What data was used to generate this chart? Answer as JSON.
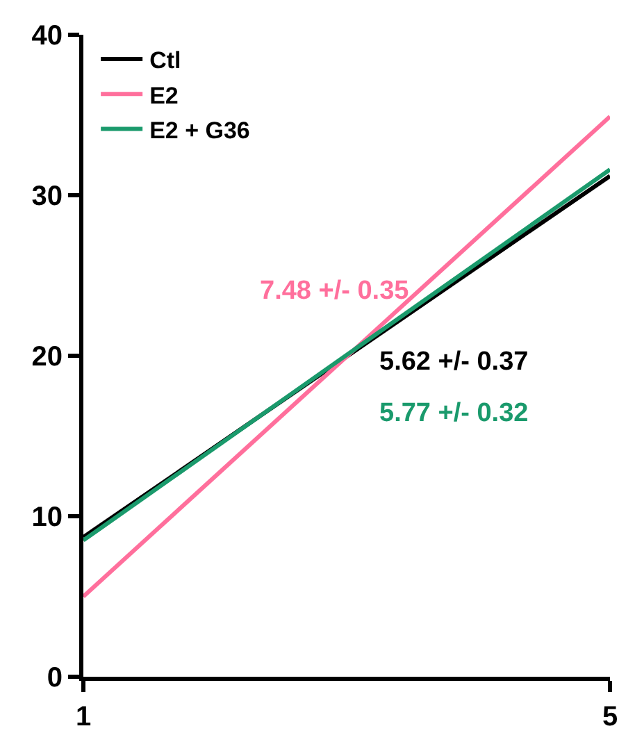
{
  "chart_data": {
    "type": "line",
    "x": [
      1,
      5
    ],
    "series": [
      {
        "name": "Ctl",
        "color": "#000000",
        "values": [
          8.7,
          31.2
        ]
      },
      {
        "name": "E2",
        "color": "#ff6f9c",
        "values": [
          5.0,
          34.9
        ]
      },
      {
        "name": "E2 + G36",
        "color": "#1a9a6c",
        "values": [
          8.5,
          31.6
        ]
      }
    ],
    "annotations": [
      "7.48 +/- 0.35",
      "5.62 +/- 0.37",
      "5.77 +/- 0.32"
    ],
    "xlim": [
      1,
      5
    ],
    "xticks": [
      1,
      5
    ],
    "ylim": [
      0,
      40
    ],
    "yticks": [
      0,
      10,
      20,
      30,
      40
    ],
    "legend": "top left",
    "marker": "none",
    "line_style": "solid"
  }
}
